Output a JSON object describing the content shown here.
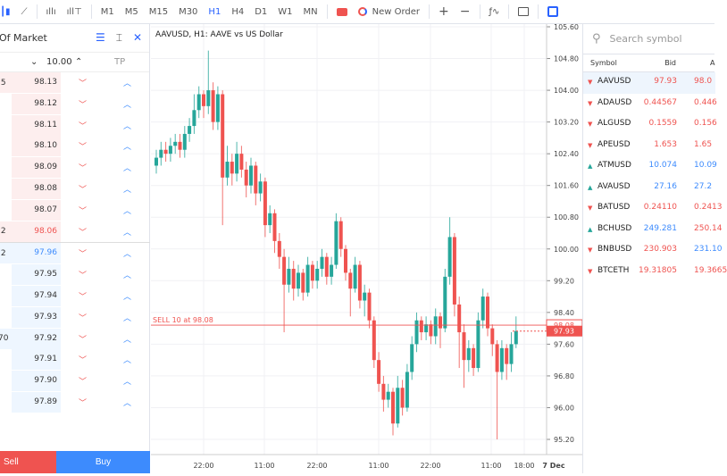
{
  "toolbar": {
    "timeframes": [
      "M1",
      "M5",
      "M15",
      "M30",
      "H1",
      "H4",
      "D1",
      "W1",
      "MN"
    ],
    "active": "H1",
    "new_order": "New Order",
    "icons": [
      "candles-icon",
      "line-chart-icon",
      "bar-chart-icon",
      "volume-icon",
      "one-click-icon",
      "new-order-icon",
      "zoom-in-icon",
      "zoom-out-icon",
      "indicators-icon",
      "calendar-icon",
      "depth-of-market-icon"
    ]
  },
  "dom": {
    "title": "Of Market",
    "volume": "10.00",
    "tp_label": "TP",
    "asks": [
      {
        "vol": ".5",
        "price": "98.13"
      },
      {
        "vol": "",
        "price": "98.12"
      },
      {
        "vol": "",
        "price": "98.11"
      },
      {
        "vol": "",
        "price": "98.10"
      },
      {
        "vol": "",
        "price": "98.09"
      },
      {
        "vol": "",
        "price": "98.08"
      },
      {
        "vol": "",
        "price": "98.07"
      },
      {
        "vol": ".2",
        "price": "98.06"
      }
    ],
    "bids": [
      {
        "vol": ".2",
        "price": "97.96"
      },
      {
        "vol": "",
        "price": "97.95"
      },
      {
        "vol": "",
        "price": "97.94"
      },
      {
        "vol": "",
        "price": "97.93"
      },
      {
        "vol": "70",
        "price": "97.92"
      },
      {
        "vol": "",
        "price": "97.91"
      },
      {
        "vol": "",
        "price": "97.90"
      },
      {
        "vol": "",
        "price": "97.89"
      }
    ],
    "sell": "Sell",
    "buy": "Buy"
  },
  "chart": {
    "title": "AAVUSD, H1: AAVE vs US Dollar",
    "order_label": "SELL 10 at 98.08",
    "order_price": 98.08,
    "current_price": "97.93",
    "current_label_top": "98.08"
  },
  "colors": {
    "up": "#26a69a",
    "down": "#ef5350",
    "accent": "#2962ff",
    "buy": "#3d8bfd"
  },
  "chart_data": {
    "type": "candlestick",
    "ylim": [
      95.2,
      105.6
    ],
    "y_ticks": [
      "105.60",
      "104.80",
      "104.00",
      "103.20",
      "102.40",
      "101.60",
      "100.80",
      "100.00",
      "99.20",
      "98.40",
      "97.60",
      "96.80",
      "96.00",
      "95.20"
    ],
    "x_ticks": [
      "22:00",
      "11:00",
      "22:00",
      "11:00",
      "22:00",
      "11:00",
      "18:00",
      "7 Dec"
    ],
    "candles": [
      [
        102.1,
        102.5,
        101.9,
        102.3
      ],
      [
        102.3,
        102.7,
        102.1,
        102.5
      ],
      [
        102.5,
        102.7,
        102.2,
        102.4
      ],
      [
        102.4,
        102.8,
        102.2,
        102.6
      ],
      [
        102.6,
        102.9,
        102.4,
        102.7
      ],
      [
        102.7,
        102.9,
        102.3,
        102.5
      ],
      [
        102.5,
        103.1,
        102.3,
        102.9
      ],
      [
        102.9,
        103.3,
        102.7,
        103.1
      ],
      [
        103.1,
        103.9,
        102.9,
        103.5
      ],
      [
        103.5,
        104.1,
        103.3,
        103.9
      ],
      [
        103.9,
        104.0,
        103.3,
        103.6
      ],
      [
        103.6,
        105.0,
        103.4,
        104.0
      ],
      [
        104.0,
        104.2,
        103.0,
        103.2
      ],
      [
        103.2,
        104.1,
        103.0,
        103.9
      ],
      [
        103.9,
        104.0,
        100.6,
        101.8
      ],
      [
        101.8,
        102.6,
        101.6,
        102.2
      ],
      [
        102.2,
        102.4,
        101.6,
        101.9
      ],
      [
        101.9,
        102.7,
        101.7,
        102.4
      ],
      [
        102.4,
        102.6,
        101.8,
        102.0
      ],
      [
        102.0,
        102.2,
        101.3,
        101.6
      ],
      [
        101.6,
        102.3,
        101.4,
        102.1
      ],
      [
        102.1,
        102.2,
        101.1,
        101.4
      ],
      [
        101.4,
        101.9,
        101.2,
        101.7
      ],
      [
        101.7,
        101.8,
        100.3,
        100.6
      ],
      [
        100.6,
        101.1,
        100.4,
        100.9
      ],
      [
        100.9,
        101.0,
        99.9,
        100.2
      ],
      [
        100.2,
        100.4,
        99.5,
        99.8
      ],
      [
        99.8,
        100.0,
        97.9,
        99.1
      ],
      [
        99.1,
        99.8,
        98.9,
        99.5
      ],
      [
        99.5,
        99.7,
        98.7,
        99.0
      ],
      [
        99.0,
        99.6,
        98.8,
        99.4
      ],
      [
        99.4,
        99.5,
        98.7,
        98.9
      ],
      [
        98.9,
        99.8,
        98.8,
        99.6
      ],
      [
        99.6,
        99.7,
        99.0,
        99.2
      ],
      [
        99.2,
        99.7,
        99.0,
        99.5
      ],
      [
        99.5,
        100.0,
        99.3,
        99.8
      ],
      [
        99.8,
        99.9,
        99.1,
        99.3
      ],
      [
        99.3,
        99.8,
        99.1,
        99.6
      ],
      [
        99.6,
        100.9,
        99.5,
        100.7
      ],
      [
        100.7,
        100.8,
        99.8,
        100.0
      ],
      [
        100.0,
        100.1,
        99.2,
        99.4
      ],
      [
        99.4,
        99.5,
        98.3,
        99.0
      ],
      [
        99.0,
        99.8,
        98.9,
        99.6
      ],
      [
        99.6,
        99.7,
        98.5,
        98.7
      ],
      [
        98.7,
        99.1,
        98.3,
        98.9
      ],
      [
        98.9,
        99.0,
        98.0,
        98.2
      ],
      [
        98.2,
        98.3,
        97.0,
        97.2
      ],
      [
        97.2,
        97.4,
        96.4,
        96.6
      ],
      [
        96.6,
        96.8,
        95.9,
        96.2
      ],
      [
        96.2,
        96.6,
        96.0,
        96.4
      ],
      [
        96.4,
        96.5,
        95.3,
        95.6
      ],
      [
        95.6,
        96.8,
        95.5,
        96.5
      ],
      [
        96.5,
        96.7,
        95.8,
        96.0
      ],
      [
        96.0,
        97.1,
        95.9,
        96.9
      ],
      [
        96.9,
        97.8,
        96.7,
        97.6
      ],
      [
        97.6,
        98.4,
        97.4,
        98.2
      ],
      [
        98.2,
        98.3,
        97.7,
        97.9
      ],
      [
        97.9,
        98.3,
        97.7,
        98.1
      ],
      [
        98.1,
        98.2,
        97.6,
        97.8
      ],
      [
        97.8,
        98.5,
        97.6,
        98.3
      ],
      [
        98.3,
        98.4,
        97.5,
        98.0
      ],
      [
        98.0,
        99.5,
        97.9,
        99.3
      ],
      [
        99.3,
        100.8,
        99.1,
        100.3
      ],
      [
        100.3,
        100.4,
        98.3,
        98.6
      ],
      [
        98.6,
        98.8,
        97.0,
        97.9
      ],
      [
        97.9,
        98.1,
        96.5,
        97.2
      ],
      [
        97.2,
        97.7,
        96.9,
        97.5
      ],
      [
        97.5,
        97.6,
        96.8,
        97.0
      ],
      [
        97.0,
        98.4,
        96.9,
        98.2
      ],
      [
        98.2,
        99.0,
        98.0,
        98.8
      ],
      [
        98.8,
        98.9,
        97.8,
        98.0
      ],
      [
        98.0,
        98.1,
        97.3,
        97.6
      ],
      [
        97.6,
        97.7,
        95.2,
        96.9
      ],
      [
        96.9,
        97.7,
        96.7,
        97.5
      ],
      [
        97.5,
        97.6,
        96.7,
        97.1
      ],
      [
        97.1,
        97.9,
        96.9,
        97.6
      ],
      [
        97.6,
        98.3,
        97.5,
        97.93
      ]
    ]
  },
  "watchlist": {
    "search_placeholder": "Search symbol",
    "headers": [
      "Symbol",
      "Bid",
      "A"
    ],
    "rows": [
      {
        "symbol": "AAVUSD",
        "dir": "down",
        "bid": "97.93",
        "ask": "98.0",
        "bid_color": "#ef5350",
        "ask_color": "#ef5350"
      },
      {
        "symbol": "ADAUSD",
        "dir": "down",
        "bid": "0.44567",
        "ask": "0.446",
        "bid_color": "#ef5350",
        "ask_color": "#ef5350"
      },
      {
        "symbol": "ALGUSD",
        "dir": "down",
        "bid": "0.1559",
        "ask": "0.156",
        "bid_color": "#ef5350",
        "ask_color": "#ef5350"
      },
      {
        "symbol": "APEUSD",
        "dir": "down",
        "bid": "1.653",
        "ask": "1.65",
        "bid_color": "#ef5350",
        "ask_color": "#ef5350"
      },
      {
        "symbol": "ATMUSD",
        "dir": "up",
        "bid": "10.074",
        "ask": "10.09",
        "bid_color": "#3d8bfd",
        "ask_color": "#3d8bfd"
      },
      {
        "symbol": "AVAUSD",
        "dir": "up",
        "bid": "27.16",
        "ask": "27.2",
        "bid_color": "#3d8bfd",
        "ask_color": "#3d8bfd"
      },
      {
        "symbol": "BATUSD",
        "dir": "down",
        "bid": "0.24110",
        "ask": "0.2413",
        "bid_color": "#ef5350",
        "ask_color": "#ef5350"
      },
      {
        "symbol": "BCHUSD",
        "dir": "up",
        "bid": "249.281",
        "ask": "250.14",
        "bid_color": "#3d8bfd",
        "ask_color": "#ef5350"
      },
      {
        "symbol": "BNBUSD",
        "dir": "down",
        "bid": "230.903",
        "ask": "231.10",
        "bid_color": "#ef5350",
        "ask_color": "#3d8bfd"
      },
      {
        "symbol": "BTCETH",
        "dir": "down",
        "bid": "19.31805",
        "ask": "19.3665",
        "bid_color": "#ef5350",
        "ask_color": "#ef5350"
      }
    ]
  }
}
